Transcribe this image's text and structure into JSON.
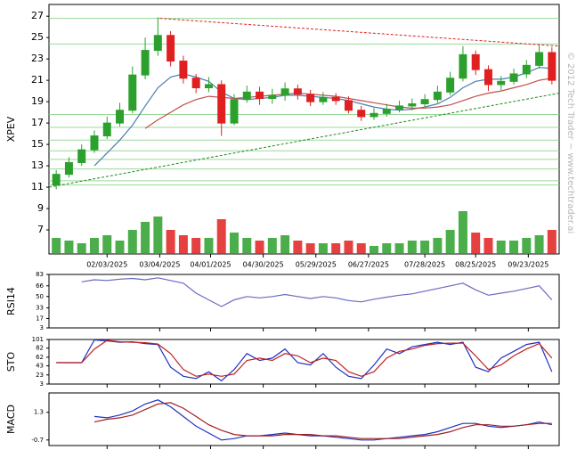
{
  "chart_data": [
    {
      "type": "candlestick",
      "y_label": "XPEV",
      "watermark": "© 2012 Tech Trader ~ www.techtrader.ai",
      "x": [
        "01/06/2025",
        "01/13/2025",
        "01/20/2025",
        "01/27/2025",
        "02/03/2025",
        "02/10/2025",
        "02/17/2025",
        "02/24/2025",
        "03/03/2025",
        "03/10/2025",
        "03/17/2025",
        "03/24/2025",
        "03/31/2025",
        "04/07/2025",
        "04/14/2025",
        "04/21/2025",
        "04/28/2025",
        "05/05/2025",
        "05/12/2025",
        "05/19/2025",
        "05/26/2025",
        "06/02/2025",
        "06/09/2025",
        "06/16/2025",
        "06/23/2025",
        "06/30/2025",
        "07/07/2025",
        "07/14/2025",
        "07/21/2025",
        "07/28/2025",
        "08/04/2025",
        "08/11/2025",
        "08/18/2025",
        "08/25/2025",
        "09/01/2025",
        "09/08/2025",
        "09/15/2025",
        "09/22/2025",
        "09/29/2025",
        "10/06/2025"
      ],
      "xlim": [
        "01/02/2025",
        "10/10/2025"
      ],
      "xticks": [
        "02/03/2025",
        "03/04/2025",
        "04/01/2025",
        "04/30/2025",
        "05/29/2025",
        "06/27/2025",
        "07/28/2025",
        "08/25/2025",
        "09/23/2025"
      ],
      "open": [
        11.2,
        12.2,
        13.3,
        14.5,
        15.8,
        17.0,
        18.2,
        21.5,
        23.8,
        25.2,
        22.8,
        21.2,
        20.3,
        20.6,
        17.0,
        19.2,
        19.9,
        19.3,
        19.6,
        20.2,
        19.7,
        19.0,
        19.4,
        19.1,
        18.2,
        17.6,
        17.9,
        18.3,
        18.6,
        18.8,
        19.2,
        19.9,
        21.2,
        23.4,
        22.0,
        20.6,
        20.9,
        21.6,
        22.4,
        23.6
      ],
      "high": [
        12.6,
        13.8,
        15.0,
        16.3,
        17.6,
        18.9,
        22.3,
        25.0,
        26.9,
        25.6,
        23.3,
        21.6,
        21.3,
        21.0,
        19.7,
        20.5,
        20.4,
        20.2,
        20.8,
        20.6,
        20.1,
        19.9,
        19.8,
        19.5,
        18.6,
        18.4,
        18.8,
        19.1,
        19.3,
        19.7,
        20.5,
        21.8,
        24.2,
        23.8,
        22.4,
        21.4,
        22.1,
        22.9,
        24.3,
        24.1
      ],
      "low": [
        10.8,
        11.9,
        13.0,
        14.2,
        15.5,
        16.7,
        17.9,
        21.1,
        23.3,
        22.3,
        20.7,
        19.8,
        19.9,
        15.8,
        16.8,
        18.9,
        18.7,
        18.8,
        19.1,
        19.2,
        18.6,
        18.7,
        18.7,
        17.9,
        17.2,
        17.3,
        17.6,
        18.0,
        18.2,
        18.5,
        18.9,
        19.6,
        20.9,
        21.5,
        20.0,
        20.1,
        20.6,
        21.2,
        22.1,
        20.6
      ],
      "close": [
        12.2,
        13.3,
        14.5,
        15.8,
        17.0,
        18.2,
        21.5,
        23.8,
        25.2,
        22.8,
        21.2,
        20.3,
        20.6,
        17.0,
        19.2,
        19.9,
        19.3,
        19.6,
        20.2,
        19.7,
        19.0,
        19.4,
        19.1,
        18.2,
        17.6,
        17.9,
        18.3,
        18.6,
        18.8,
        19.2,
        19.9,
        21.2,
        23.4,
        22.0,
        20.6,
        20.9,
        21.6,
        22.4,
        23.6,
        21.0
      ],
      "volume": [
        30,
        25,
        20,
        30,
        35,
        25,
        45,
        60,
        70,
        45,
        35,
        30,
        30,
        65,
        40,
        30,
        25,
        30,
        35,
        25,
        20,
        20,
        20,
        25,
        20,
        15,
        20,
        20,
        25,
        25,
        30,
        45,
        80,
        40,
        30,
        25,
        25,
        30,
        35,
        45
      ],
      "y2lim": [
        0,
        100
      ],
      "up_color": "#2ca02c",
      "down_color": "#e02020",
      "series": [
        {
          "color": "#4a7fb0",
          "values": [
            null,
            null,
            null,
            13.0,
            14.2,
            15.4,
            16.8,
            18.6,
            20.3,
            21.3,
            21.6,
            21.3,
            20.9,
            19.9,
            19.3,
            19.2,
            19.3,
            19.4,
            19.6,
            19.6,
            19.5,
            19.4,
            19.3,
            19.1,
            18.8,
            18.5,
            18.3,
            18.2,
            18.3,
            18.5,
            18.8,
            19.4,
            20.3,
            20.9,
            21.1,
            21.1,
            21.3,
            21.7,
            22.2,
            22.1
          ]
        },
        {
          "color": "#c0504d",
          "values": [
            null,
            null,
            null,
            null,
            null,
            null,
            null,
            16.5,
            17.3,
            18.0,
            18.7,
            19.2,
            19.5,
            19.4,
            19.3,
            19.4,
            19.5,
            19.6,
            19.7,
            19.8,
            19.7,
            19.6,
            19.5,
            19.3,
            19.1,
            18.9,
            18.7,
            18.5,
            18.4,
            18.4,
            18.5,
            18.7,
            19.1,
            19.5,
            19.8,
            20.0,
            20.3,
            20.6,
            21.0,
            21.2
          ]
        }
      ],
      "trendlines": [
        {
          "from": [
            "03/04/2025",
            26.8
          ],
          "to": [
            "10/10/2025",
            24.2
          ],
          "color": "#e02020"
        },
        {
          "from": [
            "01/02/2025",
            11.0
          ],
          "to": [
            "10/10/2025",
            19.8
          ],
          "color": "#1a8a1a"
        }
      ],
      "levels": [
        26.8,
        24.4,
        17.8,
        16.6,
        15.4,
        14.4,
        13.6,
        12.7,
        11.6,
        11.2
      ],
      "level_color": "#9ad89a",
      "ylim": [
        4.75,
        28.1
      ],
      "yticks": [
        7,
        9,
        11,
        13,
        15,
        17,
        19,
        21,
        23,
        25,
        27
      ]
    },
    {
      "type": "line",
      "y_label": "RSI14",
      "ylim": [
        3,
        83
      ],
      "yticks": [
        3,
        17,
        33,
        50,
        66,
        83
      ],
      "series": [
        {
          "color": "#6a6ac0",
          "values": [
            null,
            null,
            72,
            75,
            74,
            76,
            77,
            75,
            78,
            74,
            70,
            55,
            45,
            35,
            45,
            50,
            48,
            50,
            53,
            50,
            47,
            50,
            48,
            44,
            42,
            46,
            49,
            52,
            54,
            58,
            62,
            66,
            70,
            60,
            52,
            55,
            58,
            62,
            66,
            45
          ]
        }
      ]
    },
    {
      "type": "line",
      "y_label": "STO",
      "ylim": [
        3,
        101
      ],
      "yticks": [
        3,
        23,
        43,
        62,
        82,
        101
      ],
      "series": [
        {
          "color": "#2030c0",
          "values": [
            50,
            50,
            50,
            100,
            98,
            95,
            96,
            92,
            90,
            40,
            20,
            15,
            30,
            10,
            35,
            70,
            55,
            60,
            80,
            50,
            45,
            70,
            40,
            20,
            15,
            45,
            80,
            70,
            85,
            90,
            95,
            90,
            95,
            40,
            30,
            60,
            75,
            90,
            95,
            30
          ]
        },
        {
          "color": "#c02020",
          "values": [
            50,
            50,
            50,
            80,
            99,
            96,
            95,
            94,
            91,
            70,
            35,
            20,
            25,
            20,
            25,
            55,
            60,
            55,
            70,
            65,
            50,
            60,
            55,
            30,
            20,
            30,
            60,
            75,
            80,
            88,
            92,
            93,
            93,
            65,
            35,
            45,
            65,
            80,
            92,
            60
          ]
        }
      ]
    },
    {
      "type": "line",
      "y_label": "MACD",
      "ylim": [
        -1.1,
        2.7
      ],
      "yticks": [
        -0.7,
        1.3
      ],
      "series": [
        {
          "color": "#2030c0",
          "values": [
            null,
            null,
            null,
            1.0,
            0.9,
            1.1,
            1.4,
            1.9,
            2.2,
            1.7,
            1.0,
            0.3,
            -0.2,
            -0.7,
            -0.6,
            -0.4,
            -0.4,
            -0.3,
            -0.2,
            -0.3,
            -0.4,
            -0.4,
            -0.5,
            -0.6,
            -0.7,
            -0.7,
            -0.6,
            -0.5,
            -0.4,
            -0.3,
            -0.1,
            0.2,
            0.5,
            0.5,
            0.3,
            0.2,
            0.3,
            0.4,
            0.6,
            0.4
          ]
        },
        {
          "color": "#a02020",
          "values": [
            null,
            null,
            null,
            0.6,
            0.8,
            0.9,
            1.1,
            1.5,
            1.9,
            2.0,
            1.6,
            1.0,
            0.4,
            0.0,
            -0.3,
            -0.4,
            -0.4,
            -0.4,
            -0.3,
            -0.3,
            -0.3,
            -0.4,
            -0.4,
            -0.5,
            -0.6,
            -0.6,
            -0.6,
            -0.6,
            -0.5,
            -0.4,
            -0.3,
            -0.1,
            0.2,
            0.4,
            0.4,
            0.3,
            0.3,
            0.4,
            0.5,
            0.5
          ]
        }
      ]
    }
  ]
}
